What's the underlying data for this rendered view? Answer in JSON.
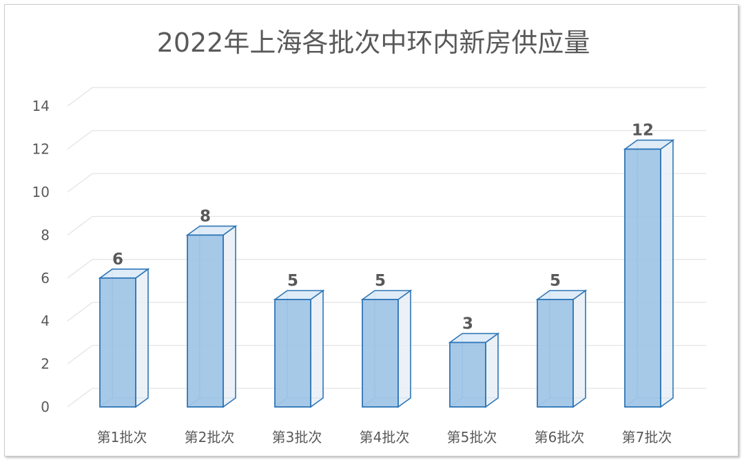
{
  "chart_data": {
    "type": "bar",
    "title": "2022年上海各批次中环内新房供应量",
    "xlabel": "",
    "ylabel": "",
    "categories": [
      "第1批次",
      "第2批次",
      "第3批次",
      "第4批次",
      "第5批次",
      "第6批次",
      "第7批次"
    ],
    "values": [
      6,
      8,
      5,
      5,
      3,
      5,
      12
    ],
    "ylim": [
      0,
      14
    ],
    "yticks": [
      0,
      2,
      4,
      6,
      8,
      10,
      12,
      14
    ],
    "grid": true,
    "legend": "none",
    "style": "3d-column",
    "colors": {
      "bar_fill": "#9DC3E6",
      "bar_edge": "#2E75B6",
      "grid": "#E4E4E4",
      "text": "#595959"
    }
  }
}
